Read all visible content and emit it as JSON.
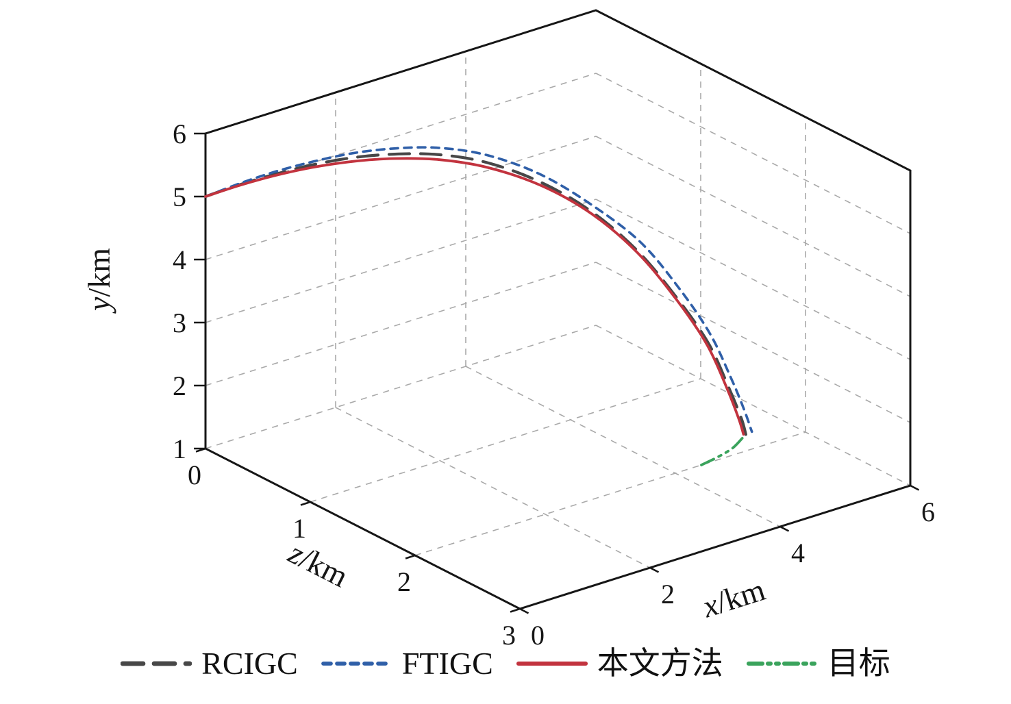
{
  "figure": {
    "background": "#ffffff",
    "axis_color": "#161616",
    "grid_color": "#a9a9a9"
  },
  "chart_data": {
    "type": "line",
    "subtype": "3d-trajectories",
    "title": "",
    "grid": {
      "dashed": true,
      "color": "#a9a9a9",
      "on": true
    },
    "legend_position": "bottom",
    "axes": {
      "x": {
        "label_var": "x",
        "label_unit": "/km",
        "ticks": [
          0,
          2,
          4,
          6
        ],
        "range": [
          0,
          6
        ]
      },
      "y": {
        "label_var": "y",
        "label_unit": "/km",
        "ticks": [
          1,
          2,
          3,
          4,
          5,
          6
        ],
        "range": [
          1,
          6
        ]
      },
      "z": {
        "label_var": "z",
        "label_unit": "/km",
        "ticks": [
          0,
          1,
          2,
          3
        ],
        "range": [
          0,
          3
        ]
      }
    },
    "series": [
      {
        "name": "RCIGC",
        "color": "#474747",
        "dash": "30 16",
        "width": 4.2,
        "points": [
          [
            0.0,
            5.0,
            0.0
          ],
          [
            0.5,
            5.03,
            0.01
          ],
          [
            1.0,
            5.06,
            0.04
          ],
          [
            1.5,
            5.09,
            0.09
          ],
          [
            2.0,
            5.1,
            0.16
          ],
          [
            2.5,
            5.07,
            0.25
          ],
          [
            3.0,
            5.0,
            0.37
          ],
          [
            3.5,
            4.84,
            0.53
          ],
          [
            4.0,
            4.53,
            0.73
          ],
          [
            4.4,
            4.13,
            0.96
          ],
          [
            4.7,
            3.62,
            1.21
          ],
          [
            4.9,
            3.02,
            1.46
          ],
          [
            5.06,
            2.42,
            1.66
          ],
          [
            5.13,
            1.82,
            1.81
          ],
          [
            5.17,
            1.42,
            1.9
          ],
          [
            5.18,
            1.18,
            1.94
          ]
        ]
      },
      {
        "name": "FTIGC",
        "color": "#2f5fa8",
        "dash": "11 9",
        "width": 3.6,
        "points": [
          [
            0.0,
            5.0,
            0.0
          ],
          [
            0.5,
            5.05,
            0.01
          ],
          [
            1.0,
            5.1,
            0.04
          ],
          [
            1.5,
            5.14,
            0.09
          ],
          [
            2.0,
            5.17,
            0.16
          ],
          [
            2.5,
            5.16,
            0.25
          ],
          [
            3.0,
            5.1,
            0.36
          ],
          [
            3.5,
            4.95,
            0.51
          ],
          [
            4.0,
            4.65,
            0.7
          ],
          [
            4.4,
            4.25,
            0.92
          ],
          [
            4.74,
            3.76,
            1.2
          ],
          [
            4.95,
            3.15,
            1.45
          ],
          [
            5.1,
            2.55,
            1.65
          ],
          [
            5.18,
            1.95,
            1.8
          ],
          [
            5.22,
            1.52,
            1.9
          ],
          [
            5.24,
            1.22,
            1.96
          ]
        ]
      },
      {
        "name": "本文方法",
        "color": "#c2333e",
        "dash": "",
        "width": 3.8,
        "points": [
          [
            0.0,
            5.0,
            0.0
          ],
          [
            0.5,
            5.02,
            0.01
          ],
          [
            1.0,
            5.04,
            0.04
          ],
          [
            1.5,
            5.05,
            0.09
          ],
          [
            2.0,
            5.04,
            0.16
          ],
          [
            2.5,
            5.0,
            0.25
          ],
          [
            3.0,
            4.92,
            0.37
          ],
          [
            3.5,
            4.76,
            0.52
          ],
          [
            4.0,
            4.48,
            0.72
          ],
          [
            4.4,
            4.1,
            0.95
          ],
          [
            4.7,
            3.6,
            1.2
          ],
          [
            4.9,
            3.0,
            1.45
          ],
          [
            5.05,
            2.4,
            1.65
          ],
          [
            5.12,
            1.8,
            1.8
          ],
          [
            5.15,
            1.4,
            1.89
          ],
          [
            5.16,
            1.18,
            1.93
          ]
        ]
      },
      {
        "name": "目标",
        "color": "#3aa35c",
        "dash": "20 8 4 8 4 8",
        "width": 3.8,
        "points": [
          [
            4.4,
            1.0,
            2.0
          ],
          [
            4.7,
            1.02,
            1.98
          ],
          [
            4.95,
            1.06,
            1.96
          ],
          [
            5.16,
            1.14,
            1.93
          ]
        ]
      }
    ]
  }
}
